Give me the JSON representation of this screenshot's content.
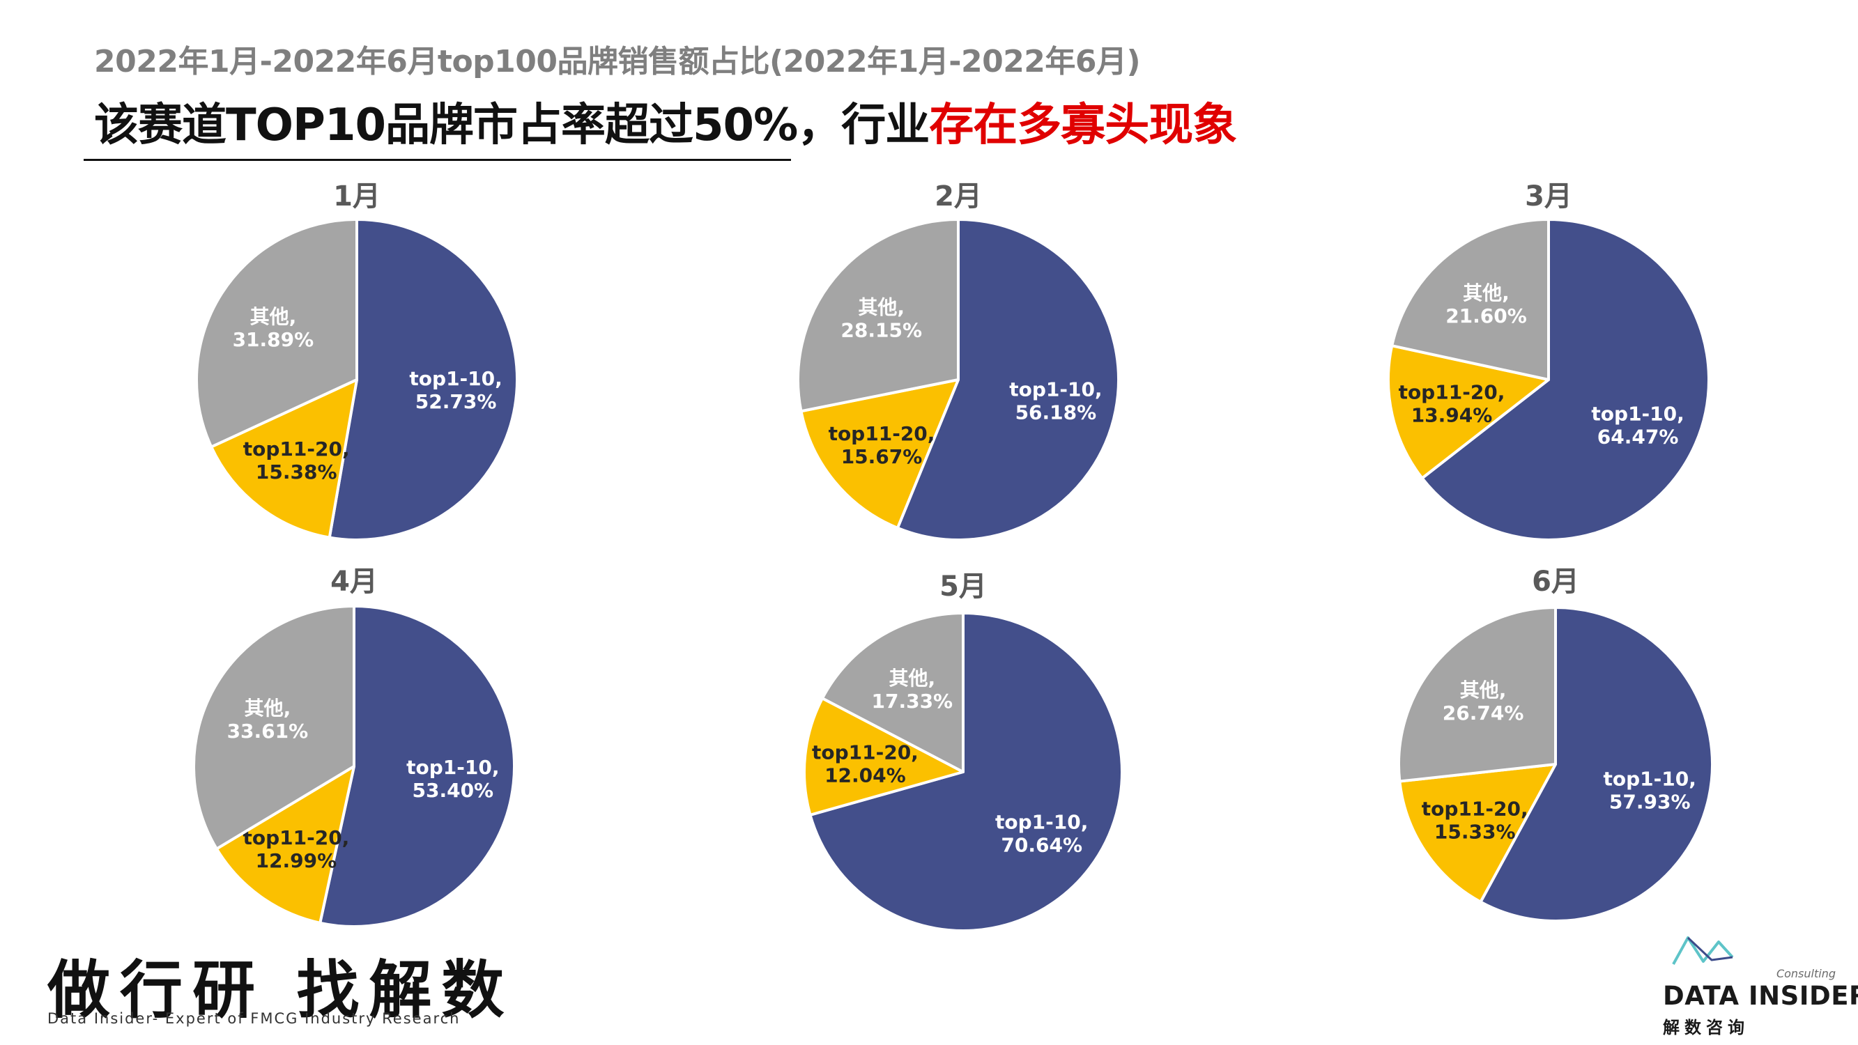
{
  "header": {
    "subtitle": "2022年1月-2022年6月top100品牌销售额占比(2022年1月-2022年6月)",
    "headline_main": "该赛道TOP10品牌市占率超过50%，行业",
    "headline_highlight": "存在多寡头现象"
  },
  "colors": {
    "top1_10": "#434f8b",
    "top11_20": "#fbc000",
    "others": "#a5a5a5",
    "highlight": "#e00000"
  },
  "chart_data": [
    {
      "type": "pie",
      "title": "1月",
      "slices": [
        {
          "label": "top1-10",
          "value": 52.73,
          "value_text": "52.73%"
        },
        {
          "label": "top11-20",
          "value": 15.38,
          "value_text": "15.38%"
        },
        {
          "label": "其他",
          "value": 31.89,
          "value_text": "31.89%"
        }
      ]
    },
    {
      "type": "pie",
      "title": "2月",
      "slices": [
        {
          "label": "top1-10",
          "value": 56.18,
          "value_text": "56.18%"
        },
        {
          "label": "top11-20",
          "value": 15.67,
          "value_text": "15.67%"
        },
        {
          "label": "其他",
          "value": 28.15,
          "value_text": "28.15%"
        }
      ]
    },
    {
      "type": "pie",
      "title": "3月",
      "slices": [
        {
          "label": "top1-10",
          "value": 64.47,
          "value_text": "64.47%"
        },
        {
          "label": "top11-20",
          "value": 13.94,
          "value_text": "13.94%"
        },
        {
          "label": "其他",
          "value": 21.6,
          "value_text": "21.60%"
        }
      ]
    },
    {
      "type": "pie",
      "title": "4月",
      "slices": [
        {
          "label": "top1-10",
          "value": 53.4,
          "value_text": "53.40%"
        },
        {
          "label": "top11-20",
          "value": 12.99,
          "value_text": "12.99%"
        },
        {
          "label": "其他",
          "value": 33.61,
          "value_text": "33.61%"
        }
      ]
    },
    {
      "type": "pie",
      "title": "5月",
      "slices": [
        {
          "label": "top1-10",
          "value": 70.64,
          "value_text": "70.64%"
        },
        {
          "label": "top11-20",
          "value": 12.04,
          "value_text": "12.04%"
        },
        {
          "label": "其他",
          "value": 17.33,
          "value_text": "17.33%"
        }
      ]
    },
    {
      "type": "pie",
      "title": "6月",
      "slices": [
        {
          "label": "top1-10",
          "value": 57.93,
          "value_text": "57.93%"
        },
        {
          "label": "top11-20",
          "value": 15.33,
          "value_text": "15.33%"
        },
        {
          "label": "其他",
          "value": 26.74,
          "value_text": "26.74%"
        }
      ]
    }
  ],
  "footer": {
    "slogan": "做行研 找解数",
    "slogan_sub": "Data Insider- Expert of FMCG Industry Research",
    "logo_consulting": "Consulting",
    "logo_name": "DATA INSIDER",
    "logo_cn": "解数咨询"
  }
}
